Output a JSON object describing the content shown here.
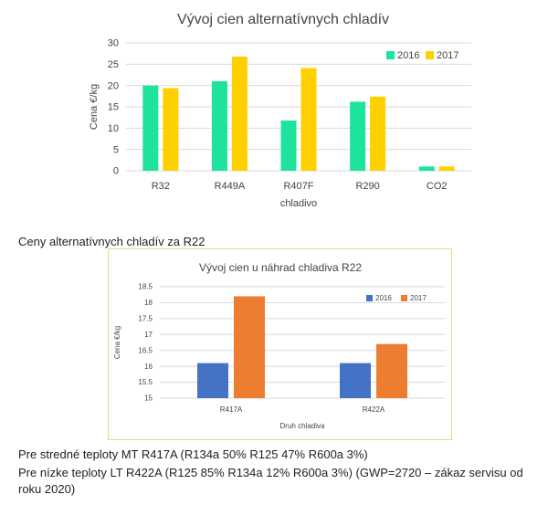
{
  "chart_data": [
    {
      "type": "bar",
      "title": "Vývoj cien alternatívnych chladív",
      "xlabel": "chladivo",
      "ylabel": "Cena €/kg",
      "categories": [
        "R32",
        "R449A",
        "R407F",
        "R290",
        "CO2"
      ],
      "series": [
        {
          "name": "2016",
          "values": [
            20,
            21,
            11.8,
            16.2,
            1
          ],
          "color": "#1de39d"
        },
        {
          "name": "2017",
          "values": [
            19.4,
            26.8,
            24.1,
            17.4,
            1
          ],
          "color": "#ffd000"
        }
      ],
      "ylim": [
        0,
        30
      ],
      "yticks": [
        "0",
        "5",
        "10",
        "15",
        "20",
        "25",
        "30"
      ],
      "grid": true,
      "legend": "top-right"
    },
    {
      "type": "bar",
      "title": "Vývoj cien u náhrad chladiva R22",
      "xlabel": "Druh chladiva",
      "ylabel": "Cena €/kg",
      "categories": [
        "R417A",
        "R422A"
      ],
      "series": [
        {
          "name": "2016",
          "values": [
            16.1,
            16.1
          ],
          "color": "#4472c4"
        },
        {
          "name": "2017",
          "values": [
            18.2,
            16.7
          ],
          "color": "#ed7d31"
        }
      ],
      "ylim": [
        15,
        18.5
      ],
      "yticks": [
        "15",
        "15.5",
        "16",
        "16.5",
        "17",
        "17.5",
        "18",
        "18.5"
      ],
      "grid": true,
      "legend": "top-right"
    }
  ],
  "texts": {
    "caption": "Ceny alternatívnych chladív za R22",
    "note_mt": "Pre stredné teploty MT R417A (R134a 50% R125 47% R600a 3%)",
    "note_lt": "Pre nízke teploty LT R422A (R125 85% R134a 12% R600a 3%) (GWP=2720 – zákaz servisu od roku 2020)"
  }
}
